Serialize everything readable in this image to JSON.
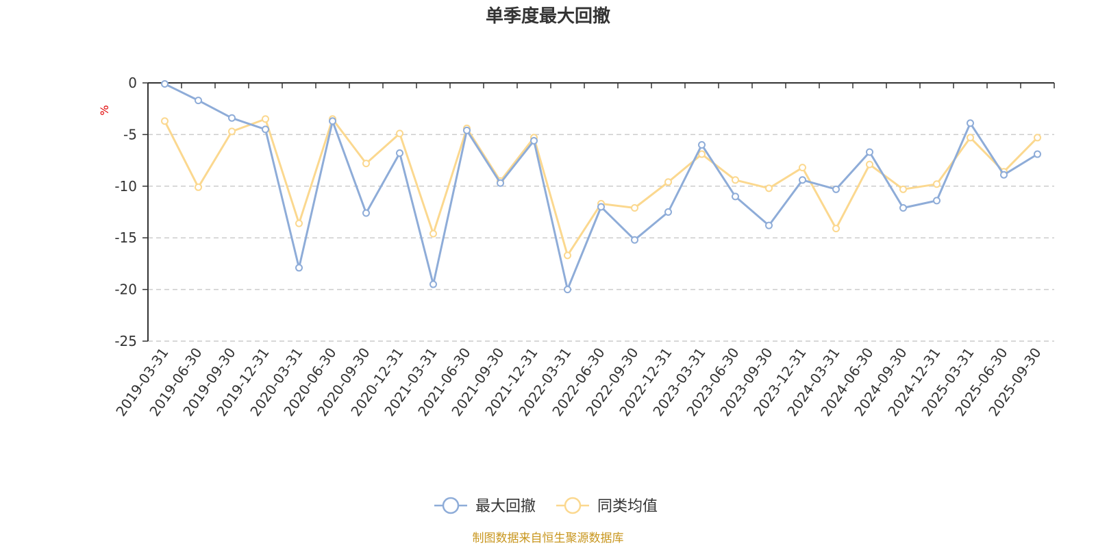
{
  "chart_data": {
    "type": "line",
    "title": "单季度最大回撤",
    "ylabel": "%",
    "ylim": [
      -25,
      0
    ],
    "yticks": [
      0,
      -5,
      -10,
      -15,
      -20,
      -25
    ],
    "grid": true,
    "legend_position": "bottom",
    "x": [
      "2019-03-31",
      "2019-06-30",
      "2019-09-30",
      "2019-12-31",
      "2020-03-31",
      "2020-06-30",
      "2020-09-30",
      "2020-12-31",
      "2021-03-31",
      "2021-06-30",
      "2021-09-30",
      "2021-12-31",
      "2022-03-31",
      "2022-06-30",
      "2022-09-30",
      "2022-12-31",
      "2023-03-31",
      "2023-06-30",
      "2023-09-30",
      "2023-12-31",
      "2024-03-31",
      "2024-06-30",
      "2024-09-30",
      "2024-12-31",
      "2025-03-31",
      "2025-06-30",
      "2025-09-30"
    ],
    "series": [
      {
        "name": "最大回撤",
        "color": "#8eacd8",
        "values": [
          -0.1,
          -1.7,
          -3.4,
          -4.5,
          -17.9,
          -3.7,
          -12.6,
          -6.8,
          -19.5,
          -4.6,
          -9.7,
          -5.6,
          -20.0,
          -12.0,
          -15.2,
          -12.5,
          -6.0,
          -11.0,
          -13.8,
          -9.4,
          -10.3,
          -6.7,
          -12.1,
          -11.4,
          -3.9,
          -8.9,
          -6.9
        ]
      },
      {
        "name": "同类均值",
        "color": "#fbd88f",
        "values": [
          -3.7,
          -10.1,
          -4.7,
          -3.5,
          -13.6,
          -3.5,
          -7.8,
          -4.9,
          -14.6,
          -4.4,
          -9.5,
          -5.3,
          -16.7,
          -11.7,
          -12.1,
          -9.6,
          -6.9,
          -9.4,
          -10.2,
          -8.2,
          -14.1,
          -7.9,
          -10.3,
          -9.8,
          -5.3,
          -8.6,
          -5.3
        ]
      }
    ]
  },
  "source_text": "制图数据来自恒生聚源数据库"
}
